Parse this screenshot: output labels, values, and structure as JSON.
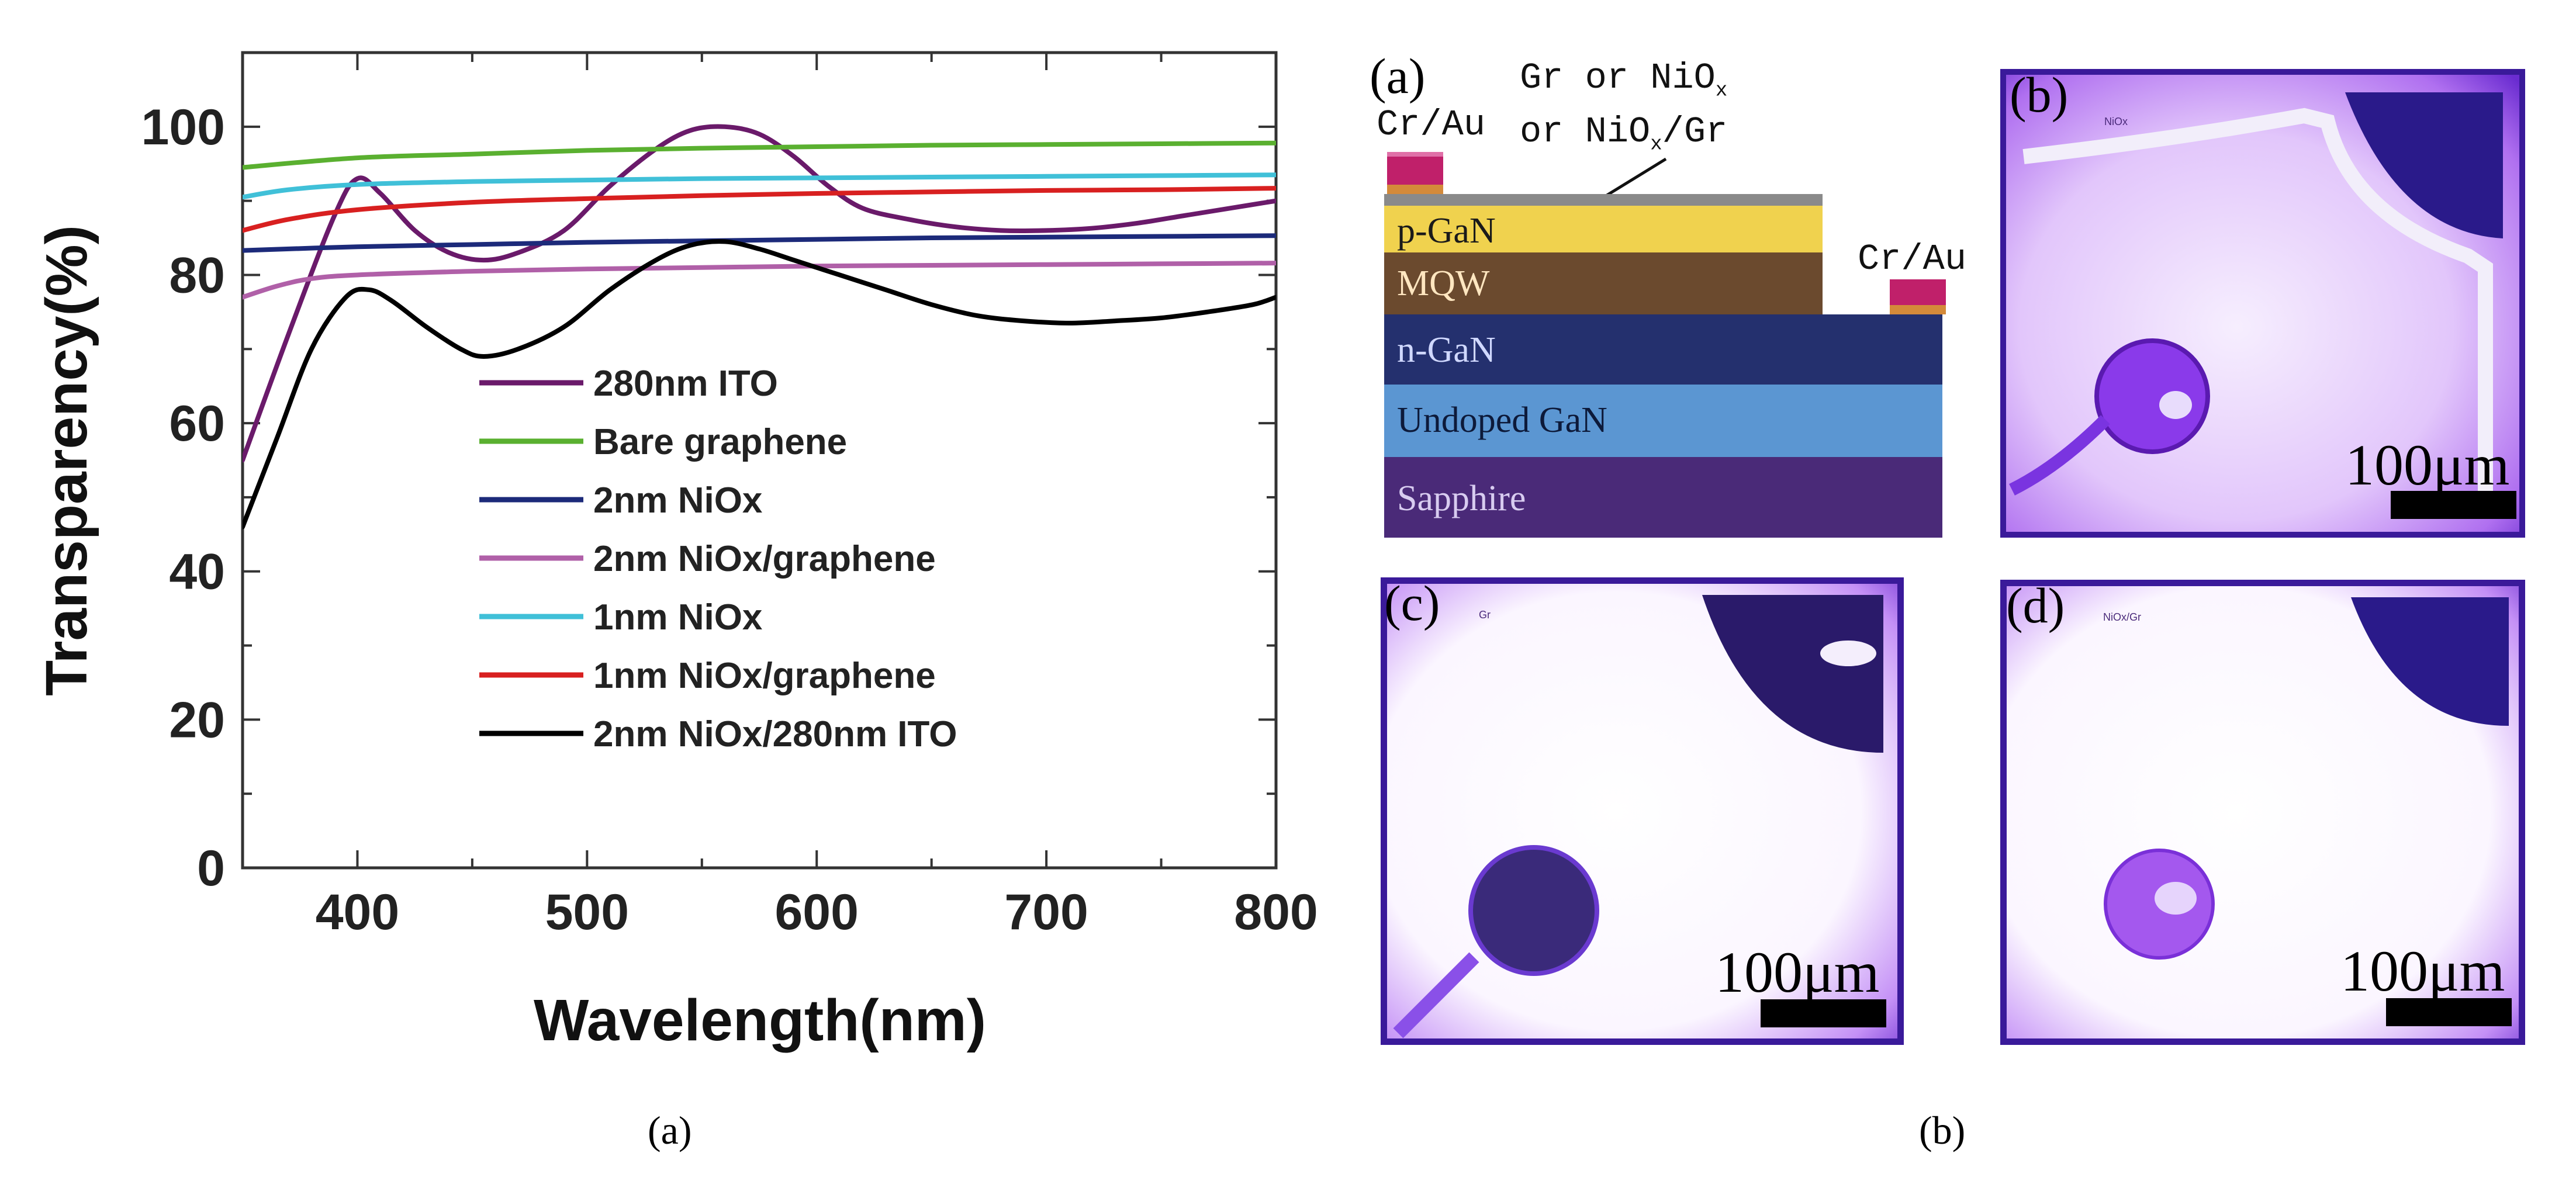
{
  "chart_data": {
    "type": "line",
    "title": "",
    "xlabel": "Wavelength(nm)",
    "ylabel": "Transparency(%)",
    "xlim": [
      350,
      800
    ],
    "ylim": [
      0,
      110
    ],
    "xticks": [
      400,
      500,
      600,
      700,
      800
    ],
    "yticks": [
      0,
      20,
      40,
      60,
      80,
      100
    ],
    "legend_position": "center",
    "series": [
      {
        "name": "280nm ITO",
        "color": "#6a1a6a",
        "x": [
          350,
          370,
          390,
          400,
          410,
          425,
          440,
          455,
          470,
          490,
          510,
          530,
          545,
          560,
          575,
          590,
          605,
          620,
          640,
          660,
          680,
          700,
          720,
          740,
          760,
          780,
          800
        ],
        "y": [
          55,
          72,
          88,
          93,
          91,
          86,
          83,
          82,
          83,
          86,
          92,
          97,
          99.5,
          100,
          99,
          96,
          92,
          89,
          87.5,
          86.5,
          86,
          86,
          86.3,
          87,
          88,
          89,
          90
        ]
      },
      {
        "name": "Bare graphene",
        "color": "#5ab030",
        "x": [
          350,
          400,
          450,
          500,
          550,
          600,
          650,
          700,
          750,
          800
        ],
        "y": [
          94.5,
          95.8,
          96.3,
          96.8,
          97.1,
          97.3,
          97.5,
          97.6,
          97.7,
          97.8
        ]
      },
      {
        "name": "2nm NiOx",
        "color": "#1c2a7a",
        "x": [
          350,
          400,
          450,
          500,
          550,
          600,
          650,
          700,
          750,
          800
        ],
        "y": [
          83.3,
          83.8,
          84.1,
          84.4,
          84.6,
          84.8,
          85.0,
          85.1,
          85.2,
          85.3
        ]
      },
      {
        "name": "2nm NiOx/graphene",
        "color": "#b060a8",
        "x": [
          350,
          365,
          380,
          400,
          450,
          500,
          550,
          600,
          650,
          700,
          750,
          800
        ],
        "y": [
          77,
          78.5,
          79.5,
          80,
          80.5,
          80.8,
          81.0,
          81.2,
          81.3,
          81.4,
          81.5,
          81.6
        ]
      },
      {
        "name": "1nm NiOx",
        "color": "#40c0d8",
        "x": [
          350,
          370,
          400,
          450,
          500,
          550,
          600,
          650,
          700,
          750,
          800
        ],
        "y": [
          90.5,
          91.5,
          92.2,
          92.6,
          92.8,
          93.0,
          93.1,
          93.2,
          93.3,
          93.4,
          93.5
        ]
      },
      {
        "name": "1nm NiOx/graphene",
        "color": "#d82020",
        "x": [
          350,
          370,
          400,
          450,
          500,
          550,
          600,
          650,
          700,
          750,
          800
        ],
        "y": [
          86,
          87.5,
          88.8,
          89.8,
          90.3,
          90.7,
          91.0,
          91.2,
          91.4,
          91.5,
          91.7
        ]
      },
      {
        "name": "2nm NiOx/280nm ITO",
        "color": "#000000",
        "x": [
          350,
          365,
          380,
          395,
          405,
          415,
          430,
          445,
          455,
          470,
          490,
          510,
          530,
          545,
          560,
          575,
          590,
          610,
          630,
          650,
          670,
          690,
          710,
          730,
          750,
          770,
          790,
          800
        ],
        "y": [
          46,
          58,
          70,
          77,
          78,
          76.5,
          73,
          70,
          69,
          70,
          73,
          78,
          82,
          84,
          84.5,
          83.5,
          82,
          80,
          78,
          76,
          74.5,
          73.8,
          73.5,
          73.8,
          74.2,
          75,
          76,
          77
        ]
      }
    ]
  },
  "captions": {
    "left": "(a)",
    "right": "(b)"
  },
  "device": {
    "panel_letter": "(a)",
    "top_label_line1": "Gr or NiO",
    "top_label_sub1": "x",
    "top_label_line2": "or NiO",
    "top_label_sub2": "x",
    "top_label_line2_end": "/Gr",
    "contact_left": "Cr/Au",
    "contact_right": "Cr/Au",
    "layers": {
      "pgan": "p-GaN",
      "mqw": "MQW",
      "ngan": "n-GaN",
      "undoped": "Undoped GaN",
      "sapphire": "Sapphire"
    },
    "colors": {
      "pgan": "#f0d24e",
      "mqw": "#6b4a2e",
      "ngan": "#24306e",
      "undoped": "#5b96d2",
      "sapphire": "#4a2a78",
      "contact": "#c0206a",
      "contact_base": "#d48a3a",
      "top_film": "#8a8a8a"
    }
  },
  "micrographs": [
    {
      "letter": "(b)",
      "label": "NiOx",
      "scale": "100μm"
    },
    {
      "letter": "(c)",
      "label": "Gr",
      "scale": "100μm"
    },
    {
      "letter": "(d)",
      "label": "NiOx/Gr",
      "scale": "100μm"
    }
  ]
}
